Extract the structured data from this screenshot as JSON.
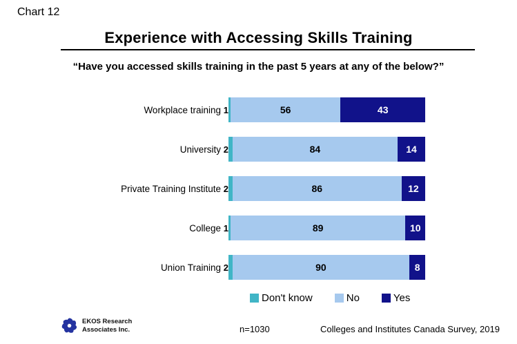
{
  "header": {
    "chart_label": "Chart 12",
    "title": "Experience with Accessing Skills Training",
    "subtitle": "“Have you accessed skills training in the past 5 years at any of the below?”"
  },
  "chart_data": {
    "type": "bar",
    "orientation": "horizontal_stacked",
    "title": "Experience with Accessing Skills Training",
    "question": "Have you accessed skills training in the past 5 years at any of the below?",
    "categories": [
      "Workplace training",
      "University",
      "Private Training Institute",
      "College",
      "Union Training"
    ],
    "series": [
      {
        "name": "Don't know",
        "color": "#40b5c6",
        "values": [
          1,
          2,
          2,
          1,
          2
        ]
      },
      {
        "name": "No",
        "color": "#a6c9ee",
        "values": [
          56,
          84,
          86,
          89,
          90
        ]
      },
      {
        "name": "Yes",
        "color": "#11128a",
        "values": [
          43,
          14,
          12,
          10,
          8
        ]
      }
    ],
    "xlim": [
      0,
      100
    ],
    "value_labels": "on",
    "legend_position": "bottom",
    "grid": "off"
  },
  "legend": {
    "items": [
      {
        "label": "Don't know",
        "color": "#40b5c6"
      },
      {
        "label": "No",
        "color": "#a6c9ee"
      },
      {
        "label": "Yes",
        "color": "#11128a"
      }
    ]
  },
  "footer": {
    "org_line1": "EKOS Research",
    "org_line2": "Associates Inc.",
    "sample": "n=1030",
    "source": "Colleges and Institutes Canada Survey, 2019",
    "logo_color": "#2433a0"
  }
}
